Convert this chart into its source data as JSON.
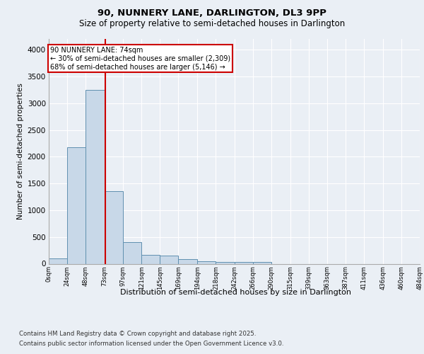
{
  "title1": "90, NUNNERY LANE, DARLINGTON, DL3 9PP",
  "title2": "Size of property relative to semi-detached houses in Darlington",
  "xlabel": "Distribution of semi-detached houses by size in Darlington",
  "ylabel": "Number of semi-detached properties",
  "bin_labels": [
    "0sqm",
    "24sqm",
    "48sqm",
    "73sqm",
    "97sqm",
    "121sqm",
    "145sqm",
    "169sqm",
    "194sqm",
    "218sqm",
    "242sqm",
    "266sqm",
    "290sqm",
    "315sqm",
    "339sqm",
    "363sqm",
    "387sqm",
    "411sqm",
    "436sqm",
    "460sqm",
    "484sqm"
  ],
  "bin_edges": [
    0,
    24,
    48,
    73,
    97,
    121,
    145,
    169,
    194,
    218,
    242,
    266,
    290,
    315,
    339,
    363,
    387,
    411,
    436,
    460,
    484
  ],
  "bar_heights": [
    100,
    2170,
    3250,
    1350,
    410,
    160,
    155,
    80,
    50,
    35,
    30,
    30,
    0,
    0,
    0,
    0,
    0,
    0,
    0,
    0
  ],
  "bar_color": "#c8d8e8",
  "bar_edge_color": "#6090b0",
  "property_size": 74,
  "vline_color": "#cc0000",
  "annotation_line1": "90 NUNNERY LANE: 74sqm",
  "annotation_line2": "← 30% of semi-detached houses are smaller (2,309)",
  "annotation_line3": "68% of semi-detached houses are larger (5,146) →",
  "annotation_box_color": "#cc0000",
  "ylim": [
    0,
    4200
  ],
  "yticks": [
    0,
    500,
    1000,
    1500,
    2000,
    2500,
    3000,
    3500,
    4000
  ],
  "bg_color": "#eaeff5",
  "plot_bg_color": "#eaeff5",
  "grid_color": "#ffffff",
  "footer1": "Contains HM Land Registry data © Crown copyright and database right 2025.",
  "footer2": "Contains public sector information licensed under the Open Government Licence v3.0."
}
